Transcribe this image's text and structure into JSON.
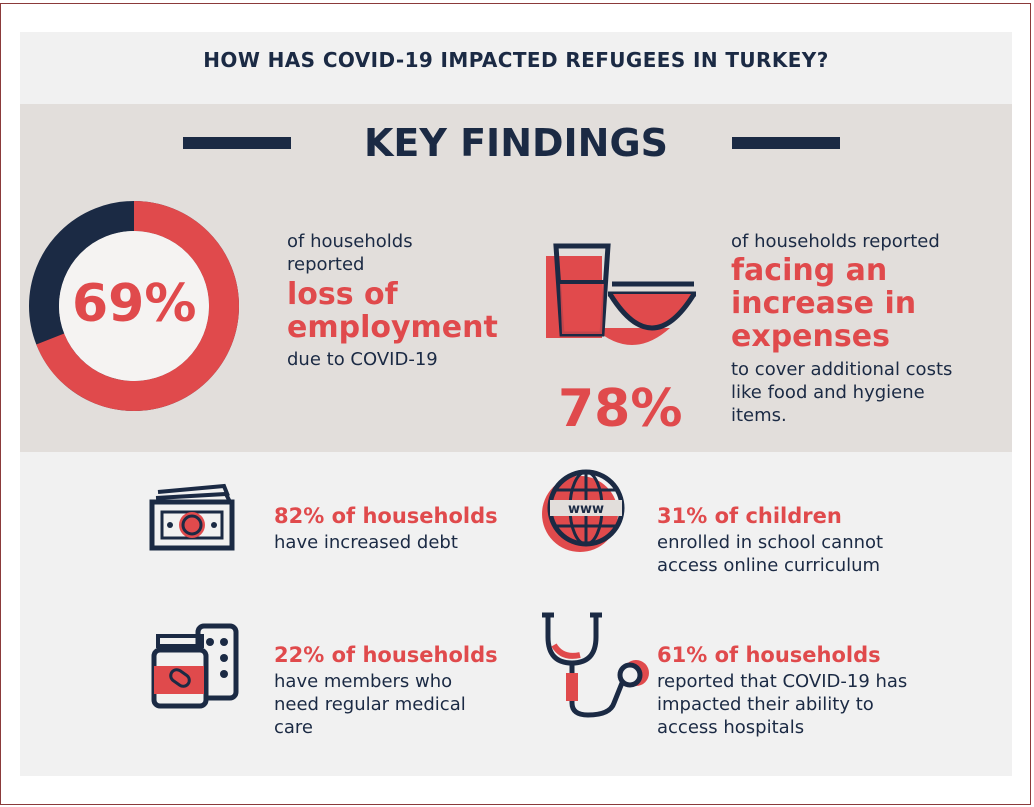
{
  "header": {
    "title": "HOW HAS COVID-19 IMPACTED REFUGEES IN TURKEY?"
  },
  "key_findings": {
    "title": "KEY FINDINGS",
    "employment": {
      "value": "69%",
      "fraction": 0.69,
      "pre": [
        "of households",
        "reported"
      ],
      "highlight": [
        "loss of",
        "employment"
      ],
      "post": "due to COVID-19"
    },
    "expenses": {
      "value": "78%",
      "pre": "of households reported",
      "highlight": [
        "facing an",
        "increase in",
        "expenses"
      ],
      "post": [
        "to cover additional costs",
        "like food and hygiene",
        "items."
      ]
    }
  },
  "findings": [
    {
      "icon": "money-icon",
      "headline": "82% of households",
      "body": [
        "have increased debt"
      ]
    },
    {
      "icon": "globe-www-icon",
      "headline": "31% of children",
      "body": [
        "enrolled in school cannot",
        "access online curriculum"
      ]
    },
    {
      "icon": "medicine-icon",
      "headline": "22% of households",
      "body": [
        "have members who",
        "need regular medical",
        "care"
      ]
    },
    {
      "icon": "stethoscope-icon",
      "headline": "61% of households",
      "body": [
        "reported that COVID-19 has",
        "impacted their ability to",
        "access hospitals"
      ]
    }
  ],
  "colors": {
    "navy": "#1b2a44",
    "red": "#e04a4c",
    "band": "#e2dedb",
    "card": "#f1f1f1"
  }
}
